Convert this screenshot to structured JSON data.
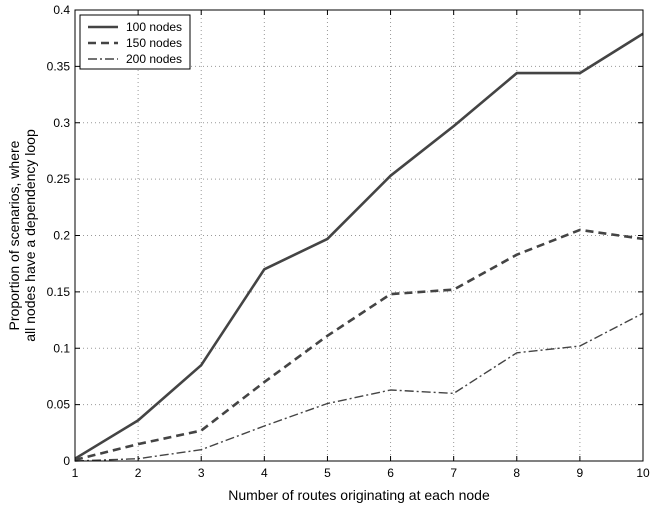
{
  "chart_data": {
    "type": "line",
    "xlabel": "Number of routes originating at each node",
    "ylabel_lines": [
      "Proportion of scenarios, where",
      "all nodes have a dependency loop"
    ],
    "x": [
      1,
      2,
      3,
      4,
      5,
      6,
      7,
      8,
      9,
      10
    ],
    "xlim": [
      1,
      10
    ],
    "ylim": [
      0,
      0.4
    ],
    "xticks": [
      "1",
      "2",
      "3",
      "4",
      "5",
      "6",
      "7",
      "8",
      "9",
      "10"
    ],
    "yticks": [
      "0",
      "0.05",
      "0.1",
      "0.15",
      "0.2",
      "0.25",
      "0.3",
      "0.35",
      "0.4"
    ],
    "grid": true,
    "legend_position": "top-left",
    "series": [
      {
        "name": "100 nodes",
        "style": "solid",
        "values": [
          0.002,
          0.036,
          0.085,
          0.17,
          0.197,
          0.253,
          0.297,
          0.344,
          0.344,
          0.379
        ]
      },
      {
        "name": "150 nodes",
        "style": "dashed",
        "values": [
          0.001,
          0.015,
          0.027,
          0.07,
          0.111,
          0.148,
          0.152,
          0.183,
          0.205,
          0.197
        ]
      },
      {
        "name": "200 nodes",
        "style": "dashdot",
        "values": [
          0.0,
          0.002,
          0.01,
          0.031,
          0.051,
          0.063,
          0.06,
          0.096,
          0.102,
          0.131
        ]
      }
    ]
  },
  "colors": {
    "line": "#444444",
    "grid": "#999999",
    "axis": "#000000"
  }
}
